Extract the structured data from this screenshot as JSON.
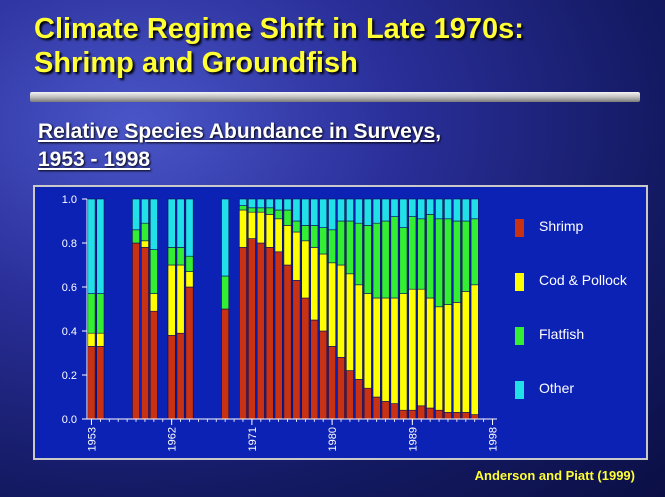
{
  "slide": {
    "title_line1": "Climate Regime Shift in Late 1970s:",
    "title_line2": "Shrimp and Groundfish",
    "subtitle_line1": "Relative Species Abundance in Surveys,",
    "subtitle_line2": "1953 - 1998",
    "credit": "Anderson and Piatt (1999)"
  },
  "colors": {
    "Shrimp": "#c83212",
    "Cod & Pollock": "#ffff00",
    "Flatfish": "#33ee33",
    "Other": "#22e0e8",
    "panel": "#0c22b4",
    "axis_text": "#ffffff"
  },
  "chart_data": {
    "type": "bar",
    "stacked": true,
    "xmin": 1953,
    "xmax": 1998,
    "ylim": [
      0,
      1.0
    ],
    "yticks": [
      "0.0",
      "0.2",
      "0.4",
      "0.6",
      "0.8",
      "1.0"
    ],
    "xticks": [
      "1953",
      "1962",
      "1971",
      "1980",
      "1989",
      "1998"
    ],
    "series": [
      {
        "name": "Shrimp",
        "values": [
          0.33,
          0.33,
          0.8,
          0.78,
          0.49,
          0.38,
          0.39,
          0.6,
          0.5,
          0.78,
          0.82,
          0.8,
          0.78,
          0.76,
          0.7,
          0.63,
          0.55,
          0.45,
          0.4,
          0.33,
          0.28,
          0.22,
          0.18,
          0.14,
          0.1,
          0.08,
          0.07,
          0.04,
          0.04,
          0.06,
          0.05,
          0.04,
          0.03,
          0.03,
          0.03,
          0.02
        ]
      },
      {
        "name": "Cod & Pollock",
        "values": [
          0.06,
          0.06,
          0.0,
          0.03,
          0.08,
          0.32,
          0.31,
          0.07,
          0.0,
          0.17,
          0.12,
          0.14,
          0.15,
          0.15,
          0.18,
          0.22,
          0.26,
          0.33,
          0.35,
          0.38,
          0.42,
          0.44,
          0.43,
          0.43,
          0.45,
          0.47,
          0.48,
          0.53,
          0.55,
          0.53,
          0.5,
          0.47,
          0.49,
          0.5,
          0.55,
          0.59
        ]
      },
      {
        "name": "Flatfish",
        "values": [
          0.18,
          0.18,
          0.06,
          0.08,
          0.2,
          0.08,
          0.08,
          0.07,
          0.15,
          0.02,
          0.02,
          0.02,
          0.03,
          0.04,
          0.07,
          0.05,
          0.07,
          0.1,
          0.12,
          0.15,
          0.2,
          0.24,
          0.28,
          0.31,
          0.34,
          0.35,
          0.37,
          0.3,
          0.33,
          0.32,
          0.38,
          0.4,
          0.39,
          0.37,
          0.32,
          0.3
        ]
      },
      {
        "name": "Other",
        "values": [
          0.43,
          0.43,
          0.14,
          0.11,
          0.23,
          0.22,
          0.22,
          0.26,
          0.35,
          0.03,
          0.04,
          0.04,
          0.04,
          0.05,
          0.05,
          0.1,
          0.12,
          0.12,
          0.13,
          0.14,
          0.1,
          0.1,
          0.11,
          0.12,
          0.11,
          0.1,
          0.08,
          0.13,
          0.08,
          0.09,
          0.07,
          0.09,
          0.09,
          0.1,
          0.1,
          0.09
        ]
      }
    ],
    "x": [
      1953,
      1954,
      1958,
      1959,
      1960,
      1962,
      1963,
      1964,
      1968,
      1970,
      1971,
      1972,
      1973,
      1974,
      1975,
      1976,
      1977,
      1978,
      1979,
      1980,
      1981,
      1982,
      1983,
      1984,
      1985,
      1986,
      1987,
      1988,
      1989,
      1990,
      1991,
      1992,
      1993,
      1994,
      1995,
      1996
    ],
    "legend_position": "right",
    "legend": [
      "Shrimp",
      "Cod & Pollock",
      "Flatfish",
      "Other"
    ]
  }
}
